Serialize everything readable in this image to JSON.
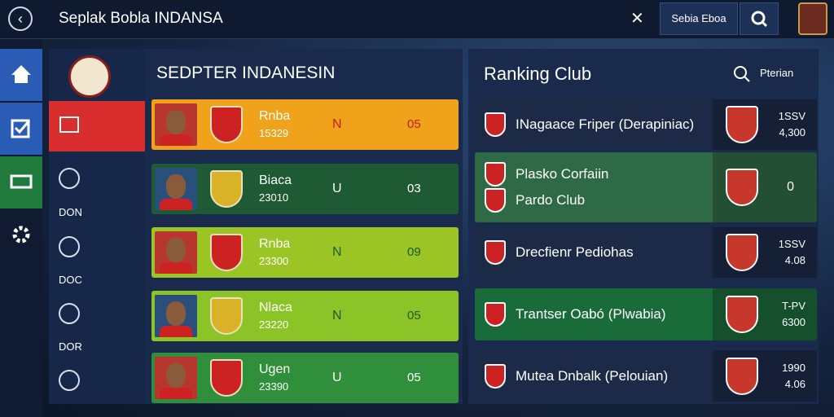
{
  "header": {
    "title": "Seplak Bobla INDANSA",
    "search_button": "Sebia Eboa"
  },
  "sidebar": {
    "items": [
      "DON",
      "DOC",
      "DOR"
    ]
  },
  "players": {
    "title": "SEDPTER INDANESIN",
    "rows": [
      {
        "name": "Rnba",
        "code": "15329",
        "status": "N",
        "score": "05"
      },
      {
        "name": "Biaca",
        "code": "23010",
        "status": "U",
        "score": "03"
      },
      {
        "name": "Rnba",
        "code": "23300",
        "status": "N",
        "score": "09"
      },
      {
        "name": "Nlaca",
        "code": "23220",
        "status": "N",
        "score": "05"
      },
      {
        "name": "Ugen",
        "code": "23390",
        "status": "U",
        "score": "05"
      }
    ]
  },
  "ranking": {
    "title": "Ranking Club",
    "filter": "Pterian",
    "rows": [
      {
        "clubs": [
          "INagaace Friper (Derapiniac)"
        ],
        "stat": "1SSV",
        "value": "4,300"
      },
      {
        "clubs": [
          "Plasko Corfaiin",
          "Pardo Club"
        ],
        "value": "0"
      },
      {
        "clubs": [
          "Drecfienr Pediohas"
        ],
        "stat": "1SSV",
        "value": "4.08"
      },
      {
        "clubs": [
          "Trantser Oabó (Plwabia)"
        ],
        "stat": "T-PV",
        "value": "6300"
      },
      {
        "clubs": [
          "Mutea Dnbalk (Pelouian)"
        ],
        "stat": "1990",
        "value": "4.06"
      }
    ]
  }
}
